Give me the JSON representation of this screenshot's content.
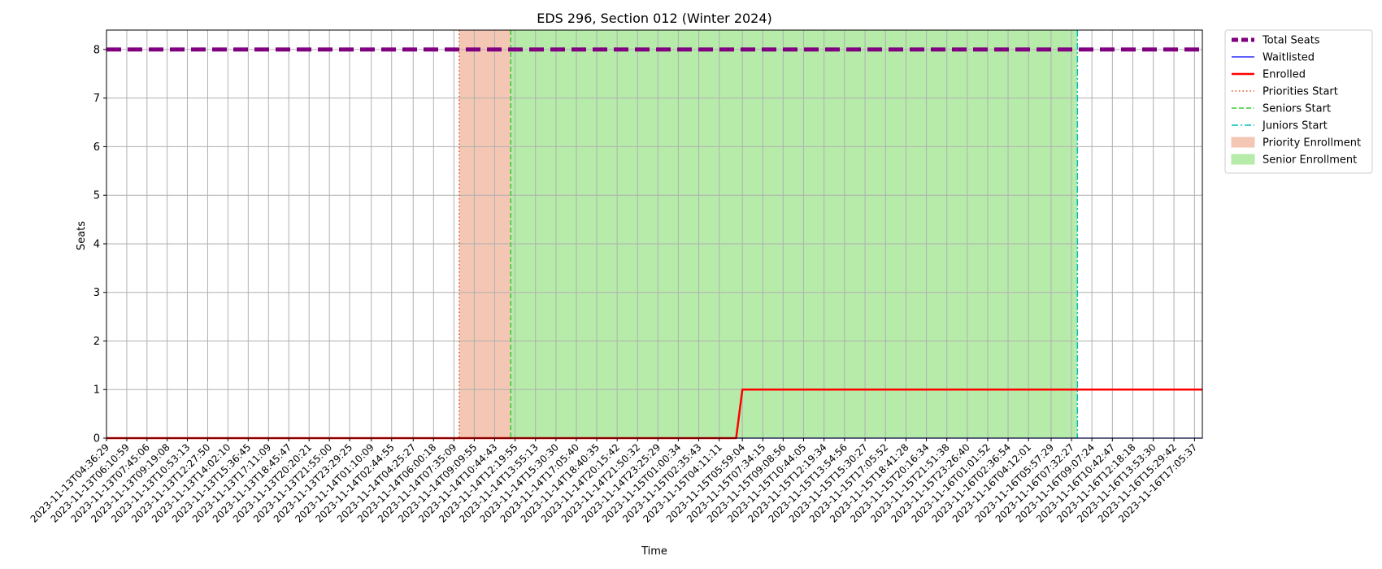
{
  "chart_data": {
    "type": "line",
    "title": "EDS 296, Section 012 (Winter 2024)",
    "xlabel": "Time",
    "ylabel": "Seats",
    "ylim": [
      0,
      8.4
    ],
    "yticks": [
      0,
      1,
      2,
      3,
      4,
      5,
      6,
      7,
      8
    ],
    "grid": true,
    "legend_position": "outside-top-right",
    "x": [
      "2023-11-13T04:36:29",
      "2023-11-13T06:10:59",
      "2023-11-13T07:45:06",
      "2023-11-13T09:19:08",
      "2023-11-13T10:53:13",
      "2023-11-13T12:27:50",
      "2023-11-13T14:02:10",
      "2023-11-13T15:36:45",
      "2023-11-13T17:11:09",
      "2023-11-13T18:45:47",
      "2023-11-13T20:20:21",
      "2023-11-13T21:55:00",
      "2023-11-13T23:29:25",
      "2023-11-14T01:10:09",
      "2023-11-14T02:44:55",
      "2023-11-14T04:25:27",
      "2023-11-14T06:00:18",
      "2023-11-14T07:35:09",
      "2023-11-14T09:09:55",
      "2023-11-14T10:44:43",
      "2023-11-14T12:19:55",
      "2023-11-14T13:55:13",
      "2023-11-14T15:30:30",
      "2023-11-14T17:05:40",
      "2023-11-14T18:40:35",
      "2023-11-14T20:15:42",
      "2023-11-14T21:50:32",
      "2023-11-14T23:25:29",
      "2023-11-15T01:00:34",
      "2023-11-15T02:35:43",
      "2023-11-15T04:11:11",
      "2023-11-15T05:59:04",
      "2023-11-15T07:34:15",
      "2023-11-15T09:08:56",
      "2023-11-15T10:44:05",
      "2023-11-15T12:19:34",
      "2023-11-15T13:54:56",
      "2023-11-15T15:30:27",
      "2023-11-15T17:05:52",
      "2023-11-15T18:41:28",
      "2023-11-15T20:16:34",
      "2023-11-15T21:51:38",
      "2023-11-15T23:26:40",
      "2023-11-16T01:01:52",
      "2023-11-16T02:36:54",
      "2023-11-16T04:12:01",
      "2023-11-16T05:57:29",
      "2023-11-16T07:32:27",
      "2023-11-16T09:07:24",
      "2023-11-16T10:42:47",
      "2023-11-16T12:18:18",
      "2023-11-16T13:53:30",
      "2023-11-16T15:29:42",
      "2023-11-16T17:05:37"
    ],
    "x_end": "2023-11-16T17:42:00",
    "series": [
      {
        "name": "Total Seats",
        "style": "thick-dashed",
        "color": "#800080",
        "points": [
          [
            "2023-11-13T04:36:29",
            8
          ],
          [
            "2023-11-16T17:42:00",
            8
          ]
        ]
      },
      {
        "name": "Waitlisted",
        "style": "solid-thin",
        "color": "#0000ff",
        "points": [
          [
            "2023-11-13T04:36:29",
            0
          ],
          [
            "2023-11-16T17:42:00",
            0
          ]
        ]
      },
      {
        "name": "Enrolled",
        "style": "solid-thick",
        "color": "#ff0000",
        "points": [
          [
            "2023-11-13T04:36:29",
            0
          ],
          [
            "2023-11-15T05:30:00",
            0
          ],
          [
            "2023-11-15T05:59:04",
            1
          ],
          [
            "2023-11-16T17:42:00",
            1
          ]
        ]
      }
    ],
    "vlines": [
      {
        "name": "Priorities Start",
        "x": "2023-11-14T08:00:00",
        "color": "#e8501e",
        "style": "dotted"
      },
      {
        "name": "Seniors Start",
        "x": "2023-11-14T12:00:00",
        "color": "#32cd32",
        "style": "dashed"
      },
      {
        "name": "Juniors Start",
        "x": "2023-11-16T08:00:00",
        "color": "#00bfbf",
        "style": "dashdot"
      }
    ],
    "spans": [
      {
        "name": "Priority Enrollment",
        "start": "2023-11-14T08:00:00",
        "end": "2023-11-14T12:00:00",
        "color": "#f4c7b4"
      },
      {
        "name": "Senior Enrollment",
        "start": "2023-11-14T12:00:00",
        "end": "2023-11-16T08:00:00",
        "color": "#b6ebaa"
      }
    ],
    "legend": [
      {
        "label": "Total Seats",
        "kind": "line",
        "color": "#800080",
        "style": "thick-dashed"
      },
      {
        "label": "Waitlisted",
        "kind": "line",
        "color": "#0000ff",
        "style": "solid-thin"
      },
      {
        "label": "Enrolled",
        "kind": "line",
        "color": "#ff0000",
        "style": "solid-thick"
      },
      {
        "label": "Priorities Start",
        "kind": "line",
        "color": "#e8501e",
        "style": "dotted"
      },
      {
        "label": "Seniors Start",
        "kind": "line",
        "color": "#32cd32",
        "style": "dashed"
      },
      {
        "label": "Juniors Start",
        "kind": "line",
        "color": "#00bfbf",
        "style": "dashdot"
      },
      {
        "label": "Priority Enrollment",
        "kind": "patch",
        "color": "#f4c7b4"
      },
      {
        "label": "Senior Enrollment",
        "kind": "patch",
        "color": "#b6ebaa"
      }
    ]
  }
}
